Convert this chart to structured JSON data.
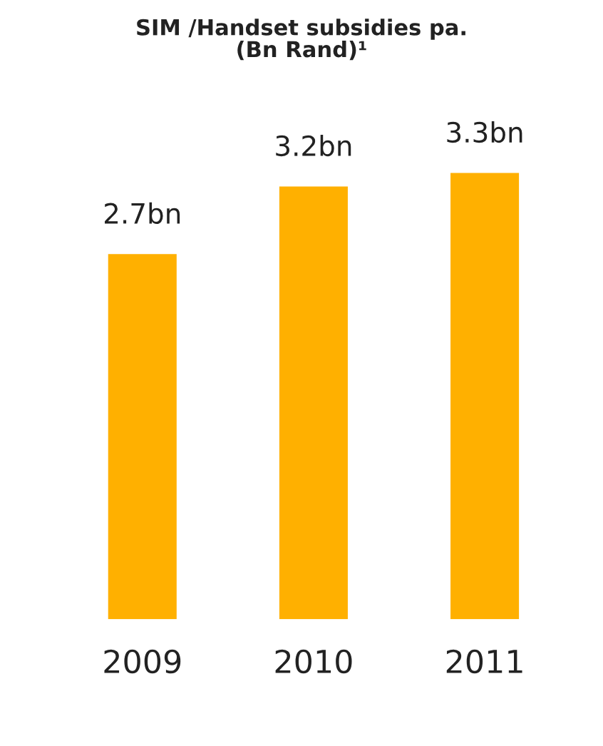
{
  "chart_data": {
    "type": "bar",
    "title": "SIM /Handset subsidies pa.\n(Bn Rand)¹",
    "categories": [
      "2009",
      "2010",
      "2011"
    ],
    "values": [
      2.7,
      3.2,
      3.3
    ],
    "value_labels": [
      "2.7bn",
      "3.2bn",
      "3.3bn"
    ],
    "color": "#ffb000",
    "tick_labels": "x",
    "grid": false,
    "legend": false
  }
}
